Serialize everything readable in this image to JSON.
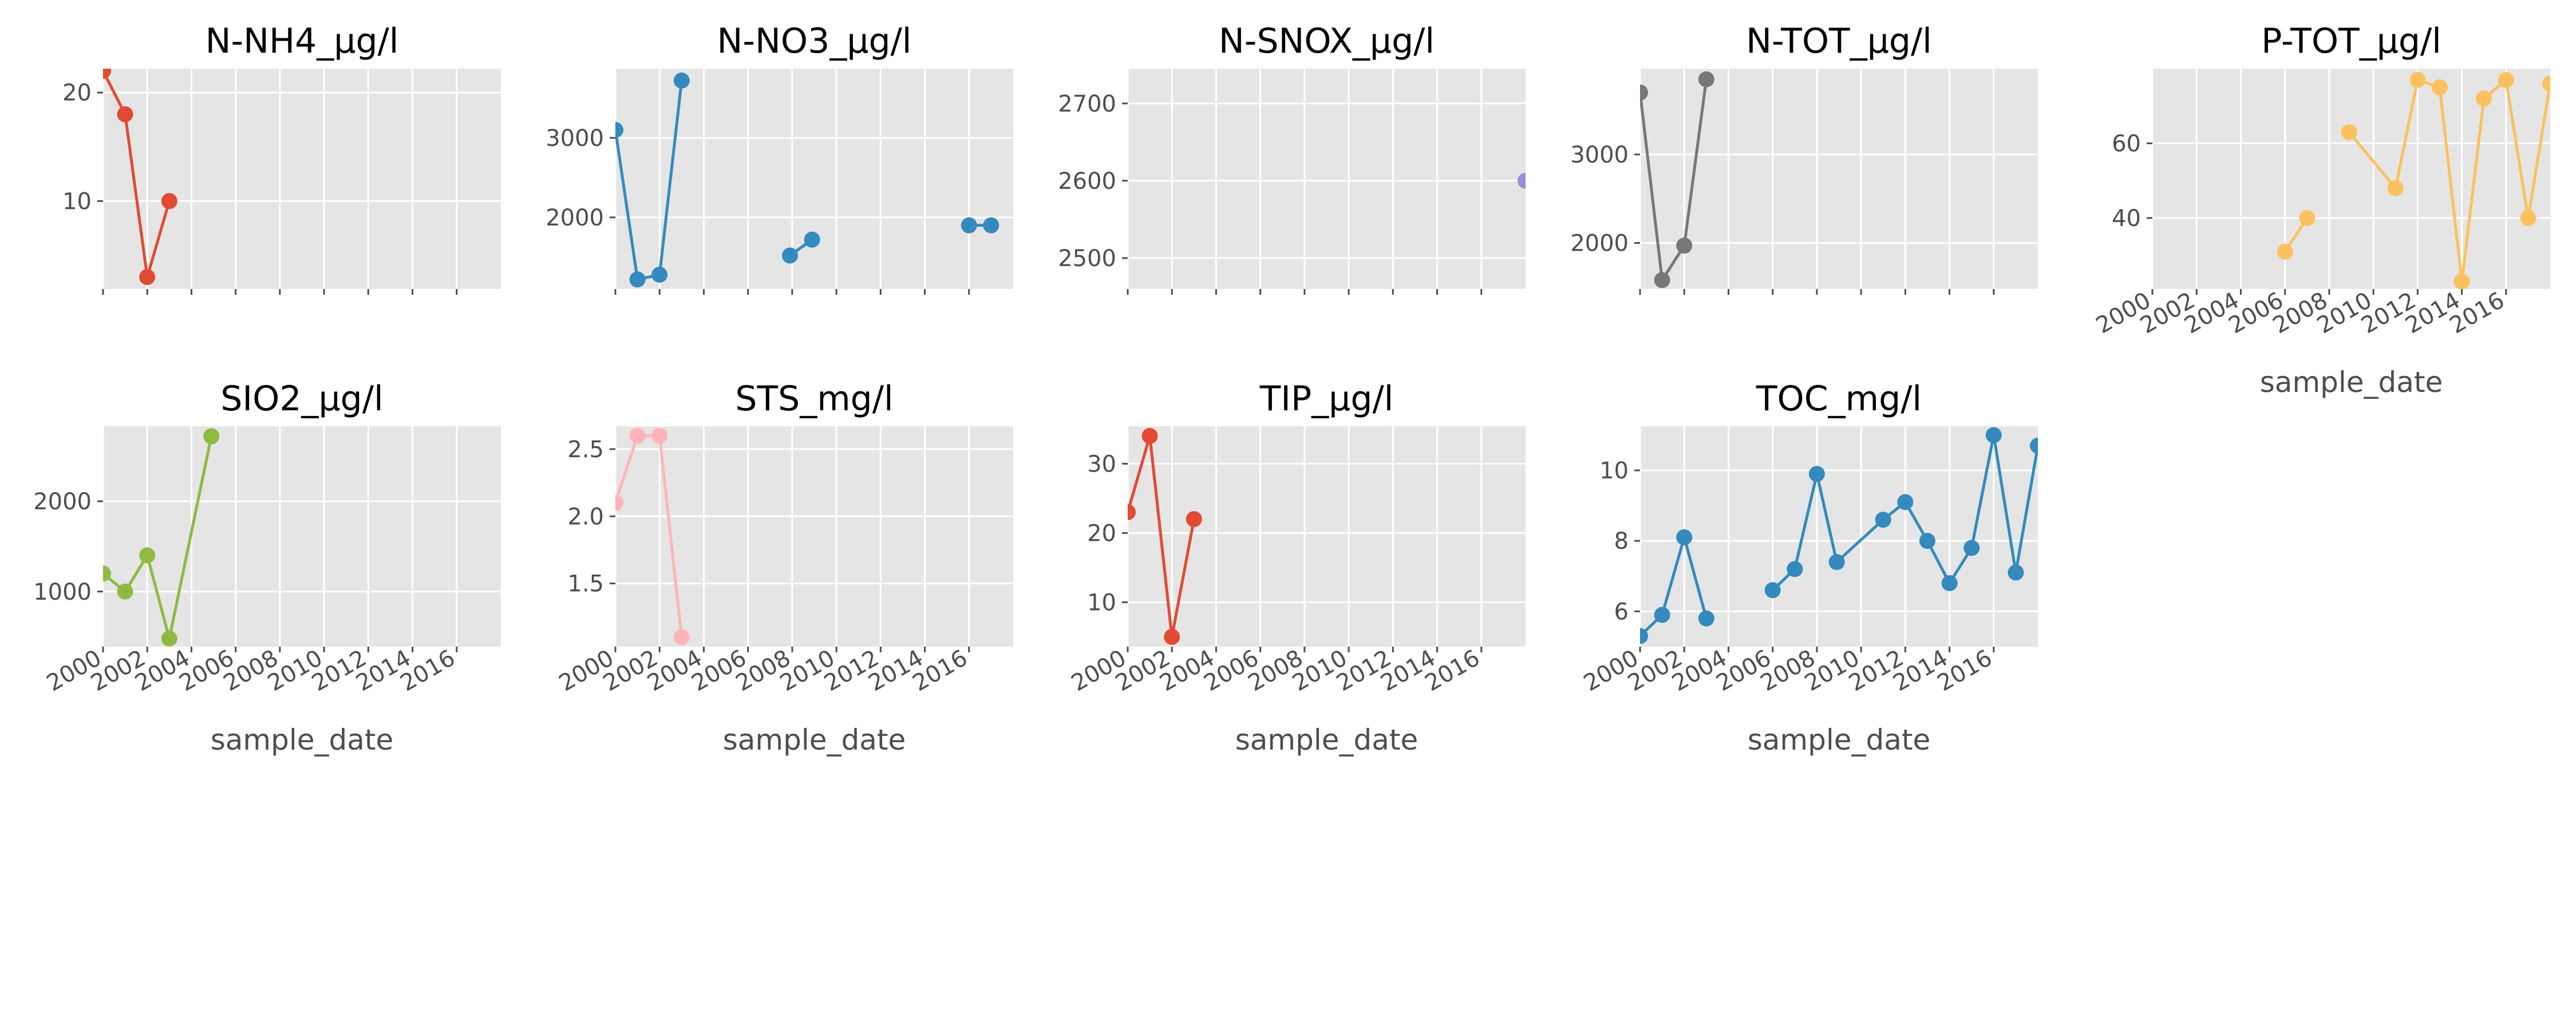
{
  "chart_data": [
    {
      "type": "line",
      "title": "N-NH4_µg/l",
      "xlabel": "",
      "color": "#e24a33",
      "xlim": [
        2000,
        2018
      ],
      "ylim": [
        1.9,
        22.2
      ],
      "y_ticks": [
        10,
        20
      ],
      "y_tick_labels": [
        "10",
        "20"
      ],
      "x_ticks": [
        2000,
        2002,
        2004,
        2006,
        2008,
        2010,
        2012,
        2014,
        2016
      ],
      "x_tick_labels": [],
      "series": [
        {
          "name": "N-NH4_µg/l",
          "points": [
            [
              2000.0,
              22
            ],
            [
              2001.0,
              18
            ],
            [
              2002.0,
              3
            ],
            [
              2003.0,
              10
            ]
          ],
          "breaks_after": []
        }
      ]
    },
    {
      "type": "line",
      "title": "N-NO3_µg/l",
      "xlabel": "",
      "color": "#348abd",
      "xlim": [
        2000,
        2018
      ],
      "ylim": [
        1100,
        3870
      ],
      "y_ticks": [
        2000,
        3000
      ],
      "y_tick_labels": [
        "2000",
        "3000"
      ],
      "x_ticks": [
        2000,
        2002,
        2004,
        2006,
        2008,
        2010,
        2012,
        2014,
        2016
      ],
      "x_tick_labels": [],
      "series": [
        {
          "name": "N-NO3_µg/l",
          "points": [
            [
              2000.0,
              3100
            ],
            [
              2001.0,
              1220
            ],
            [
              2002.0,
              1280
            ],
            [
              2003.0,
              3720
            ],
            [
              2007.9,
              1520
            ],
            [
              2008.9,
              1720
            ],
            [
              2016.0,
              1900
            ],
            [
              2017.0,
              1900
            ]
          ],
          "breaks_after": [
            3,
            5
          ]
        }
      ]
    },
    {
      "type": "line",
      "title": "N-SNOX_µg/l",
      "xlabel": "",
      "color": "#988ed5",
      "xlim": [
        2000,
        2018
      ],
      "ylim": [
        2460,
        2745
      ],
      "y_ticks": [
        2500,
        2600,
        2700
      ],
      "y_tick_labels": [
        "2500",
        "2600",
        "2700"
      ],
      "x_ticks": [
        2000,
        2002,
        2004,
        2006,
        2008,
        2010,
        2012,
        2014,
        2016
      ],
      "x_tick_labels": [],
      "series": [
        {
          "name": "N-SNOX_µg/l",
          "points": [
            [
              2018.0,
              2600
            ]
          ],
          "breaks_after": []
        }
      ]
    },
    {
      "type": "line",
      "title": "N-TOT_µg/l",
      "xlabel": "",
      "color": "#777777",
      "xlim": [
        2000,
        2018
      ],
      "ylim": [
        1480,
        3970
      ],
      "y_ticks": [
        2000,
        3000
      ],
      "y_tick_labels": [
        "2000",
        "3000"
      ],
      "x_ticks": [
        2000,
        2002,
        2004,
        2006,
        2008,
        2010,
        2012,
        2014,
        2016
      ],
      "x_tick_labels": [],
      "series": [
        {
          "name": "N-TOT_µg/l",
          "points": [
            [
              2000.0,
              3700
            ],
            [
              2001.0,
              1580
            ],
            [
              2002.0,
              1970
            ],
            [
              2003.0,
              3850
            ]
          ],
          "breaks_after": []
        }
      ]
    },
    {
      "type": "line",
      "title": "P-TOT_µg/l",
      "xlabel": "sample_date",
      "color": "#fbc15e",
      "xlim": [
        2000,
        2018
      ],
      "ylim": [
        21,
        80
      ],
      "y_ticks": [
        40,
        60
      ],
      "y_tick_labels": [
        "40",
        "60"
      ],
      "x_ticks": [
        2000,
        2002,
        2004,
        2006,
        2008,
        2010,
        2012,
        2014,
        2016
      ],
      "x_tick_labels": [
        "2000",
        "2002",
        "2004",
        "2006",
        "2008",
        "2010",
        "2012",
        "2014",
        "2016"
      ],
      "series": [
        {
          "name": "P-TOT_µg/l",
          "points": [
            [
              2006.0,
              31
            ],
            [
              2007.0,
              40
            ],
            [
              2008.9,
              63
            ],
            [
              2011.0,
              48
            ],
            [
              2012.0,
              77
            ],
            [
              2013.0,
              75
            ],
            [
              2014.0,
              23
            ],
            [
              2015.0,
              72
            ],
            [
              2016.0,
              77
            ],
            [
              2017.0,
              40
            ],
            [
              2018.0,
              76
            ]
          ],
          "breaks_after": [
            1
          ]
        }
      ]
    },
    {
      "type": "line",
      "title": "SIO2_µg/l",
      "xlabel": "sample_date",
      "color": "#8eba42",
      "xlim": [
        2000,
        2018
      ],
      "ylim": [
        390,
        2830
      ],
      "y_ticks": [
        1000,
        2000
      ],
      "y_tick_labels": [
        "1000",
        "2000"
      ],
      "x_ticks": [
        2000,
        2002,
        2004,
        2006,
        2008,
        2010,
        2012,
        2014,
        2016
      ],
      "x_tick_labels": [
        "2000",
        "2002",
        "2004",
        "2006",
        "2008",
        "2010",
        "2012",
        "2014",
        "2016"
      ],
      "series": [
        {
          "name": "SIO2_µg/l",
          "points": [
            [
              2000.0,
              1200
            ],
            [
              2001.0,
              1000
            ],
            [
              2002.0,
              1400
            ],
            [
              2003.0,
              480
            ],
            [
              2004.9,
              2720
            ]
          ],
          "breaks_after": []
        }
      ]
    },
    {
      "type": "line",
      "title": "STS_mg/l",
      "xlabel": "sample_date",
      "color": "#ffb5b8",
      "xlim": [
        2000,
        2018
      ],
      "ylim": [
        1.03,
        2.67
      ],
      "y_ticks": [
        1.5,
        2.0,
        2.5
      ],
      "y_tick_labels": [
        "1.5",
        "2.0",
        "2.5"
      ],
      "x_ticks": [
        2000,
        2002,
        2004,
        2006,
        2008,
        2010,
        2012,
        2014,
        2016
      ],
      "x_tick_labels": [
        "2000",
        "2002",
        "2004",
        "2006",
        "2008",
        "2010",
        "2012",
        "2014",
        "2016"
      ],
      "series": [
        {
          "name": "STS_mg/l",
          "points": [
            [
              2000.0,
              2.1
            ],
            [
              2001.0,
              2.6
            ],
            [
              2002.0,
              2.6
            ],
            [
              2003.0,
              1.1
            ]
          ],
          "breaks_after": []
        }
      ]
    },
    {
      "type": "line",
      "title": "TIP_µg/l",
      "xlabel": "sample_date",
      "color": "#e24a33",
      "xlim": [
        2000,
        2018
      ],
      "ylim": [
        3.6,
        35.4
      ],
      "y_ticks": [
        10,
        20,
        30
      ],
      "y_tick_labels": [
        "10",
        "20",
        "30"
      ],
      "x_ticks": [
        2000,
        2002,
        2004,
        2006,
        2008,
        2010,
        2012,
        2014,
        2016
      ],
      "x_tick_labels": [
        "2000",
        "2002",
        "2004",
        "2006",
        "2008",
        "2010",
        "2012",
        "2014",
        "2016"
      ],
      "series": [
        {
          "name": "TIP_µg/l",
          "points": [
            [
              2000.0,
              23
            ],
            [
              2001.0,
              34
            ],
            [
              2002.0,
              5
            ],
            [
              2003.0,
              22
            ]
          ],
          "breaks_after": []
        }
      ]
    },
    {
      "type": "line",
      "title": "TOC_mg/l",
      "xlabel": "sample_date",
      "color": "#348abd",
      "xlim": [
        2000,
        2018
      ],
      "ylim": [
        5.0,
        11.25
      ],
      "y_ticks": [
        6,
        8,
        10
      ],
      "y_tick_labels": [
        "6",
        "8",
        "10"
      ],
      "x_ticks": [
        2000,
        2002,
        2004,
        2006,
        2008,
        2010,
        2012,
        2014,
        2016
      ],
      "x_tick_labels": [
        "2000",
        "2002",
        "2004",
        "2006",
        "2008",
        "2010",
        "2012",
        "2014",
        "2016"
      ],
      "series": [
        {
          "name": "TOC_mg/l",
          "points": [
            [
              2000.0,
              5.3
            ],
            [
              2001.0,
              5.9
            ],
            [
              2002.0,
              8.1
            ],
            [
              2003.0,
              5.8
            ],
            [
              2006.0,
              6.6
            ],
            [
              2007.0,
              7.2
            ],
            [
              2008.0,
              9.9
            ],
            [
              2008.9,
              7.4
            ],
            [
              2011.0,
              8.6
            ],
            [
              2012.0,
              9.1
            ],
            [
              2013.0,
              8.0
            ],
            [
              2014.0,
              6.8
            ],
            [
              2015.0,
              7.8
            ],
            [
              2016.0,
              11.0
            ],
            [
              2017.0,
              7.1
            ],
            [
              2018.0,
              10.7
            ]
          ],
          "breaks_after": [
            3
          ]
        }
      ]
    }
  ]
}
